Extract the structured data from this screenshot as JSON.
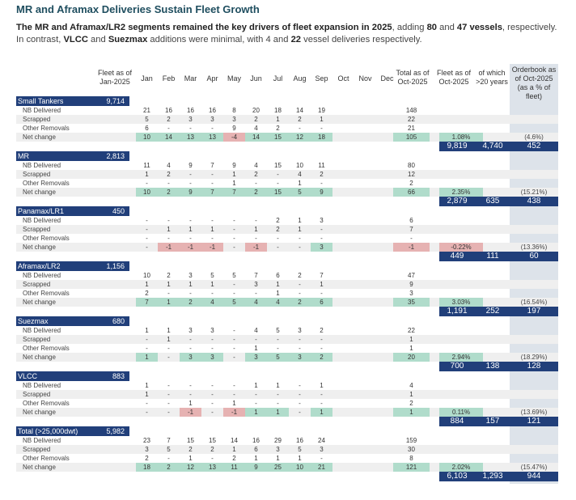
{
  "title": "MR and Aframax Deliveries Sustain Fleet Growth",
  "summary": {
    "p1": "The MR and Aframax/LR2 segments remained the key drivers of fleet expansion in 2025",
    "p2": ", adding ",
    "n1": "80",
    "p3": " and ",
    "n2": "47 vessels",
    "p4": ", respectively. In contrast, ",
    "s1": "VLCC",
    "p5": " and ",
    "s2": "Suezmax",
    "p6": " additions were minimal, with 4 and ",
    "n3": "22",
    "p7": " vessel deliveries respectively."
  },
  "headers": {
    "fleet_jan": "Fleet as of Jan-2025",
    "months": [
      "Jan",
      "Feb",
      "Mar",
      "Apr",
      "May",
      "Jun",
      "Jul",
      "Aug",
      "Sep",
      "Oct",
      "Nov",
      "Dec"
    ],
    "total": "Total as of Oct-2025",
    "fleet_oct": "Fleet as of Oct-2025",
    "over20": "of which >20 years",
    "orderbook": "Orderbook as of Oct-2025 (as a % of fleet)"
  },
  "row_labels": [
    "NB Delivered",
    "Scrapped",
    "Other Removals",
    "Net change"
  ],
  "segments": [
    {
      "name": "Small Tankers",
      "fleet_jan": "9,714",
      "rows": [
        {
          "m": [
            "21",
            "16",
            "16",
            "16",
            "8",
            "20",
            "18",
            "14",
            "19"
          ],
          "total": "148"
        },
        {
          "m": [
            "5",
            "2",
            "3",
            "3",
            "3",
            "2",
            "1",
            "2",
            "1"
          ],
          "total": "22"
        },
        {
          "m": [
            "6",
            "-",
            "-",
            "-",
            "9",
            "4",
            "2",
            "-",
            "-"
          ],
          "total": "21"
        },
        {
          "m": [
            "10",
            "14",
            "13",
            "13",
            "-4",
            "14",
            "15",
            "12",
            "18"
          ],
          "total": "105"
        }
      ],
      "growth_pct": "1.08%",
      "fleet_oct": "9,819",
      "over20": "4,740",
      "orderbook": "452",
      "orderbook_pct": "(4.6%)"
    },
    {
      "name": "MR",
      "fleet_jan": "2,813",
      "rows": [
        {
          "m": [
            "11",
            "4",
            "9",
            "7",
            "9",
            "4",
            "15",
            "10",
            "11"
          ],
          "total": "80"
        },
        {
          "m": [
            "1",
            "2",
            "-",
            "-",
            "1",
            "2",
            "-",
            "4",
            "2"
          ],
          "total": "12"
        },
        {
          "m": [
            "-",
            "-",
            "-",
            "-",
            "1",
            "-",
            "-",
            "1",
            "-"
          ],
          "total": "2"
        },
        {
          "m": [
            "10",
            "2",
            "9",
            "7",
            "7",
            "2",
            "15",
            "5",
            "9"
          ],
          "total": "66"
        }
      ],
      "growth_pct": "2.35%",
      "fleet_oct": "2,879",
      "over20": "635",
      "orderbook": "438",
      "orderbook_pct": "(15.21%)"
    },
    {
      "name": "Panamax/LR1",
      "fleet_jan": "450",
      "rows": [
        {
          "m": [
            "-",
            "-",
            "-",
            "-",
            "-",
            "-",
            "2",
            "1",
            "3"
          ],
          "total": "6"
        },
        {
          "m": [
            "-",
            "1",
            "1",
            "1",
            "-",
            "1",
            "2",
            "1",
            "-"
          ],
          "total": "7"
        },
        {
          "m": [
            "-",
            "-",
            "-",
            "-",
            "-",
            "-",
            "-",
            "-",
            "-"
          ],
          "total": "-"
        },
        {
          "m": [
            "-",
            "-1",
            "-1",
            "-1",
            "-",
            "-1",
            "-",
            "-",
            "3"
          ],
          "total": "-1"
        }
      ],
      "growth_pct": "-0.22%",
      "fleet_oct": "449",
      "over20": "111",
      "orderbook": "60",
      "orderbook_pct": "(13.36%)"
    },
    {
      "name": "Aframax/LR2",
      "fleet_jan": "1,156",
      "rows": [
        {
          "m": [
            "10",
            "2",
            "3",
            "5",
            "5",
            "7",
            "6",
            "2",
            "7"
          ],
          "total": "47"
        },
        {
          "m": [
            "1",
            "1",
            "1",
            "1",
            "-",
            "3",
            "1",
            "-",
            "1"
          ],
          "total": "9"
        },
        {
          "m": [
            "2",
            "-",
            "-",
            "-",
            "-",
            "-",
            "1",
            "-",
            "-"
          ],
          "total": "3"
        },
        {
          "m": [
            "7",
            "1",
            "2",
            "4",
            "5",
            "4",
            "4",
            "2",
            "6"
          ],
          "total": "35"
        }
      ],
      "growth_pct": "3.03%",
      "fleet_oct": "1,191",
      "over20": "252",
      "orderbook": "197",
      "orderbook_pct": "(16.54%)"
    },
    {
      "name": "Suezmax",
      "fleet_jan": "680",
      "rows": [
        {
          "m": [
            "1",
            "1",
            "3",
            "3",
            "-",
            "4",
            "5",
            "3",
            "2"
          ],
          "total": "22"
        },
        {
          "m": [
            "-",
            "1",
            "-",
            "-",
            "-",
            "-",
            "-",
            "-",
            "-"
          ],
          "total": "1"
        },
        {
          "m": [
            "-",
            "-",
            "-",
            "-",
            "-",
            "1",
            "-",
            "-",
            "-"
          ],
          "total": "1"
        },
        {
          "m": [
            "1",
            "-",
            "3",
            "3",
            "-",
            "3",
            "5",
            "3",
            "2"
          ],
          "total": "20"
        }
      ],
      "growth_pct": "2.94%",
      "fleet_oct": "700",
      "over20": "138",
      "orderbook": "128",
      "orderbook_pct": "(18.29%)"
    },
    {
      "name": "VLCC",
      "fleet_jan": "883",
      "rows": [
        {
          "m": [
            "1",
            "-",
            "-",
            "-",
            "-",
            "1",
            "1",
            "-",
            "1"
          ],
          "total": "4"
        },
        {
          "m": [
            "1",
            "-",
            "-",
            "-",
            "-",
            "-",
            "-",
            "-",
            "-"
          ],
          "total": "1"
        },
        {
          "m": [
            "-",
            "-",
            "1",
            "-",
            "1",
            "-",
            "-",
            "-",
            "-"
          ],
          "total": "2"
        },
        {
          "m": [
            "-",
            "-",
            "-1",
            "-",
            "-1",
            "1",
            "1",
            "-",
            "1"
          ],
          "total": "1"
        }
      ],
      "growth_pct": "0.11%",
      "fleet_oct": "884",
      "over20": "157",
      "orderbook": "121",
      "orderbook_pct": "(13.69%)"
    },
    {
      "name": "Total (>25,000dwt)",
      "fleet_jan": "5,982",
      "rows": [
        {
          "m": [
            "23",
            "7",
            "15",
            "15",
            "14",
            "16",
            "29",
            "16",
            "24"
          ],
          "total": "159"
        },
        {
          "m": [
            "3",
            "5",
            "2",
            "2",
            "1",
            "6",
            "3",
            "5",
            "3"
          ],
          "total": "30"
        },
        {
          "m": [
            "2",
            "-",
            "1",
            "-",
            "2",
            "1",
            "1",
            "1",
            "-"
          ],
          "total": "8"
        },
        {
          "m": [
            "18",
            "2",
            "12",
            "13",
            "11",
            "9",
            "25",
            "10",
            "21"
          ],
          "total": "121"
        }
      ],
      "growth_pct": "2.02%",
      "fleet_oct": "6,103",
      "over20": "1,293",
      "orderbook": "944",
      "orderbook_pct": "(15.47%)"
    }
  ]
}
